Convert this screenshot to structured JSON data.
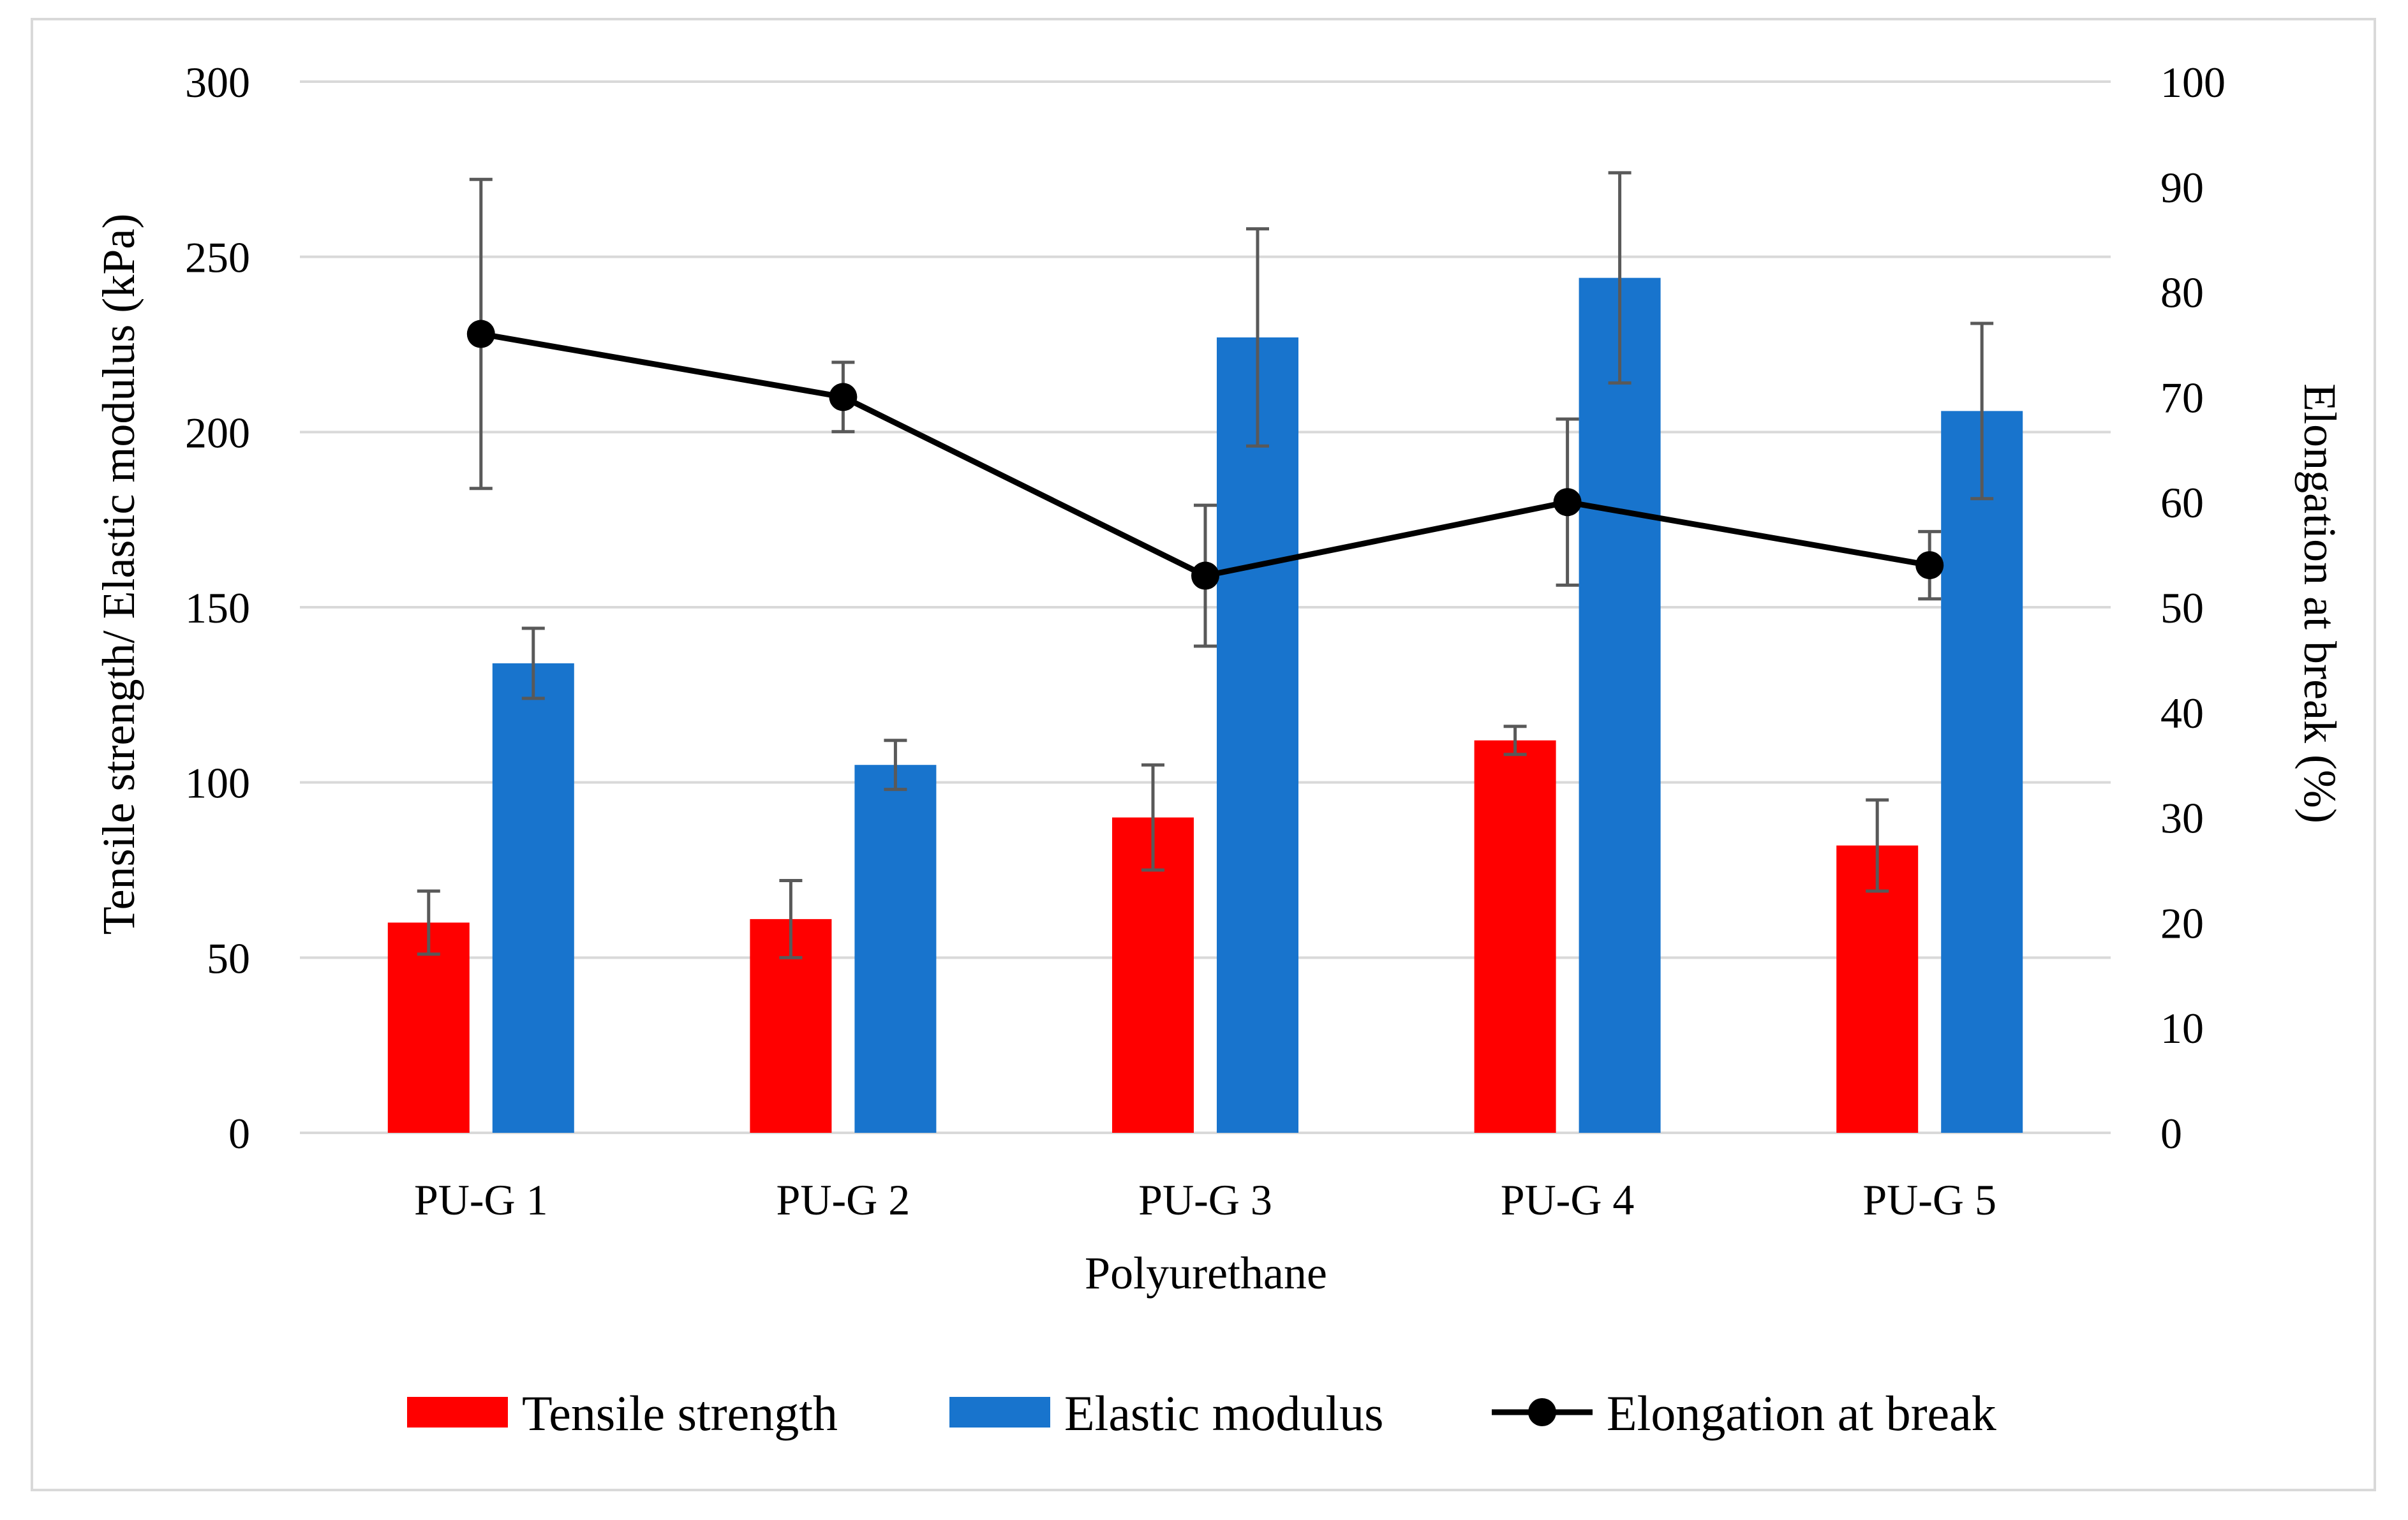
{
  "chart_data": {
    "type": "bar+line",
    "xlabel": "Polyurethane",
    "ylabel": "Tensile strength/ Elastic modulus (kPa)",
    "y2label": "Elongation at break (%)",
    "categories": [
      "PU-G 1",
      "PU-G 2",
      "PU-G 3",
      "PU-G 4",
      "PU-G 5"
    ],
    "ylim": [
      0,
      300
    ],
    "y_ticks": [
      "0",
      "50",
      "100",
      "150",
      "200",
      "250",
      "300"
    ],
    "y2lim": [
      0,
      100
    ],
    "y2_ticks": [
      "0",
      "10",
      "20",
      "30",
      "40",
      "50",
      "60",
      "70",
      "80",
      "90",
      "100"
    ],
    "grid": true,
    "legend_position": "bottom",
    "series": [
      {
        "name": "Tensile strength",
        "type": "bar",
        "axis": "left",
        "color": "#ff0000",
        "values": [
          60,
          61,
          90,
          112,
          82
        ],
        "errors": [
          9,
          11,
          15,
          4,
          13
        ]
      },
      {
        "name": "Elastic modulus",
        "type": "bar",
        "axis": "left",
        "color": "#1874cd",
        "values": [
          134,
          105,
          227,
          244,
          206
        ],
        "errors": [
          10,
          7,
          31,
          30,
          25
        ]
      },
      {
        "name": "Elongation at break",
        "type": "line",
        "axis": "right",
        "color": "#000000",
        "values": [
          76,
          70,
          53,
          60,
          54
        ],
        "errors": [
          14.7,
          3.3,
          6.7,
          7.9,
          3.2
        ]
      }
    ]
  }
}
